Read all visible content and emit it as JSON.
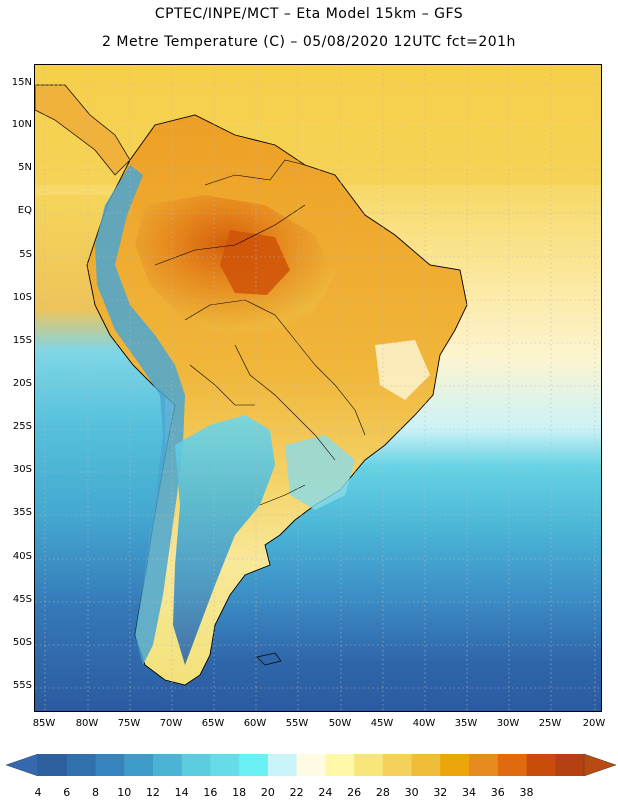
{
  "header": {
    "line1": "CPTEC/INPE/MCT –  Eta Model 15km – GFS",
    "line2": "2 Metre Temperature (C) – 05/08/2020 12UTC fct=201h"
  },
  "axes": {
    "lat_labels": [
      "15N",
      "10N",
      "5N",
      "EQ",
      "5S",
      "10S",
      "15S",
      "20S",
      "25S",
      "30S",
      "35S",
      "40S",
      "45S",
      "50S",
      "55S"
    ],
    "lon_labels": [
      "85W",
      "80W",
      "75W",
      "70W",
      "65W",
      "60W",
      "55W",
      "50W",
      "45W",
      "40W",
      "35W",
      "30W",
      "25W",
      "20W"
    ]
  },
  "colorbar": {
    "labels": [
      "4",
      "6",
      "8",
      "10",
      "12",
      "14",
      "16",
      "18",
      "20",
      "22",
      "24",
      "26",
      "28",
      "30",
      "32",
      "34",
      "36",
      "38"
    ],
    "colors": [
      "#2e5f9e",
      "#2f70ad",
      "#3584bd",
      "#3e9cc9",
      "#4bb4d4",
      "#5cccdf",
      "#65dde9",
      "#68f0f5",
      "#c9f5f9",
      "#fffbe3",
      "#fff8a8",
      "#f9e67a",
      "#f3d15a",
      "#efbd3a",
      "#eda60a",
      "#e88b1e",
      "#e06a0f",
      "#c94d0a",
      "#b54012"
    ],
    "under_color": "#3568b0",
    "over_color": "#b84a12"
  },
  "map_colors": {
    "ocean_cold": "#2e62a6",
    "ocean_mid": "#3f8fc6",
    "ocean_cool": "#58c3dc",
    "ocean_mild": "#c9f5f9",
    "ocean_warm": "#fbf4c8",
    "ocean_tropic": "#f3d760",
    "land_hot": "#e6911e",
    "land_veryhot": "#d9620c",
    "land_warm": "#efc040",
    "andes": "#4aa0d0",
    "patagonia": "#3778b8",
    "gridline": "#b9b9b9",
    "coast": "#000000"
  }
}
